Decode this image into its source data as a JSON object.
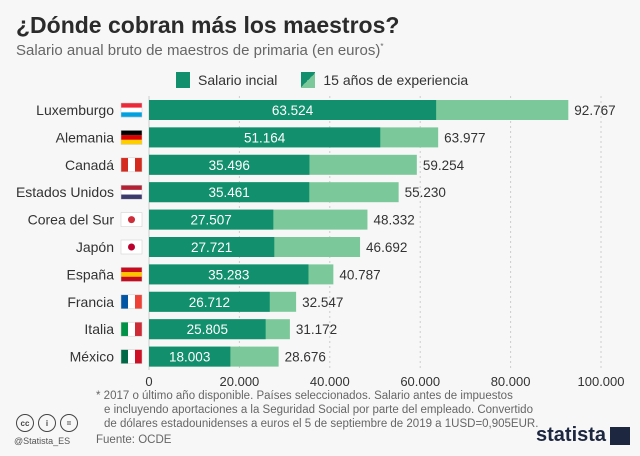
{
  "title": "¿Dónde cobran más los maestros?",
  "subtitle": "Salario anual bruto de maestros de primaria (en euros)",
  "subtitle_mark": "*",
  "footnote": [
    "* 2017 o último año disponible. Países seleccionados. Salario antes de impuestos",
    "e incluyendo aportaciones a la Seguridad Social por parte del empleado. Convertido",
    "de dólares estadounidenses a euros el 5 de septiembre de 2019 a 1USD=0,905EUR."
  ],
  "source": "Fuente: OCDE",
  "handle": "@Statista_ES",
  "brand": "statista",
  "colors": {
    "initial": "#128f6c",
    "experienced": "#7bc89a"
  },
  "chart_data": {
    "type": "bar",
    "orientation": "horizontal",
    "stacked": "overlay",
    "categories": [
      "Luxemburgo",
      "Alemania",
      "Canadá",
      "Estados Unidos",
      "Corea del Sur",
      "Japón",
      "España",
      "Francia",
      "Italia",
      "México"
    ],
    "series": [
      {
        "name": "Salario incial",
        "values": [
          63524,
          51164,
          35496,
          35461,
          27507,
          27721,
          35283,
          26712,
          25805,
          18003
        ],
        "labels": [
          "63.524",
          "51.164",
          "35.496",
          "35.461",
          "27.507",
          "27.721",
          "35.283",
          "26.712",
          "25.805",
          "18.003"
        ]
      },
      {
        "name": "15 años de experiencia",
        "values": [
          92767,
          63977,
          59254,
          55230,
          48332,
          46692,
          40787,
          32547,
          31172,
          28676
        ],
        "labels": [
          "92.767",
          "63.977",
          "59.254",
          "55.230",
          "48.332",
          "46.692",
          "40.787",
          "32.547",
          "31.172",
          "28.676"
        ]
      }
    ],
    "xlim": [
      0,
      100000
    ],
    "ticks": [
      0,
      20000,
      40000,
      60000,
      80000,
      100000
    ],
    "tick_labels": [
      "0",
      "20.000",
      "40.000",
      "60.000",
      "80.000",
      "100.000"
    ],
    "grid": true,
    "legend_position": "top"
  }
}
